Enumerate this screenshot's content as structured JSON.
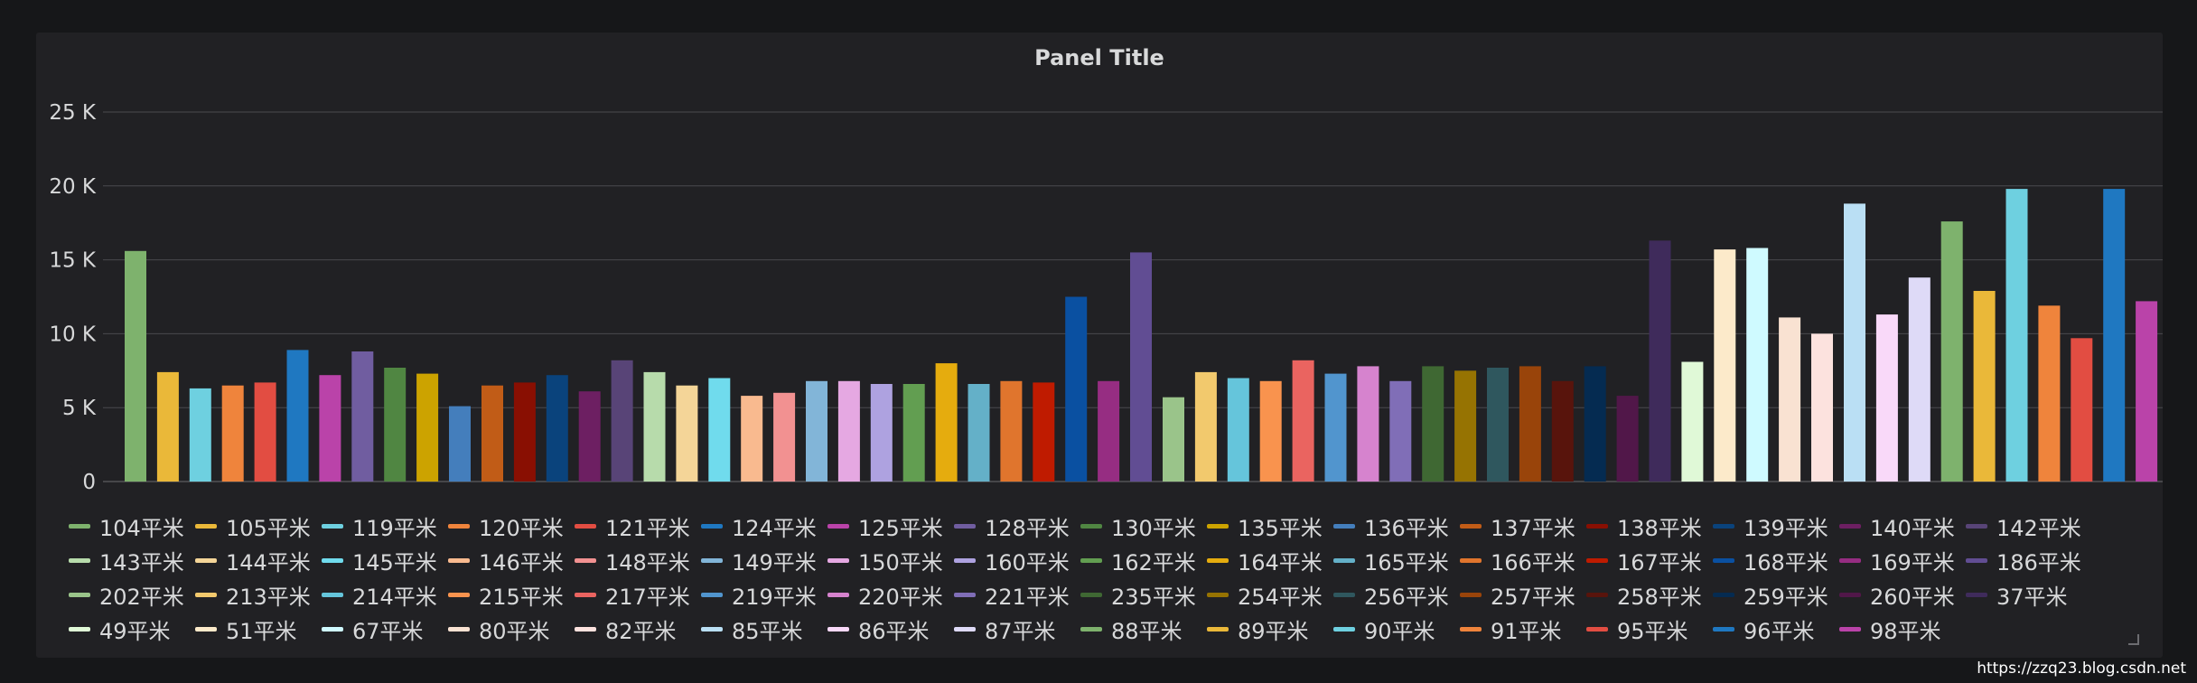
{
  "panel": {
    "title": "Panel Title"
  },
  "watermark": "https://zzq23.blog.csdn.net",
  "chart_data": {
    "type": "bar",
    "title": "Panel Title",
    "xlabel": "",
    "ylabel": "",
    "ylim": [
      0,
      25000
    ],
    "y_ticks": [
      0,
      5000,
      10000,
      15000,
      20000,
      25000
    ],
    "y_tick_labels": [
      "0",
      "5 K",
      "10 K",
      "15 K",
      "20 K",
      "25 K"
    ],
    "grid": true,
    "legend_position": "bottom",
    "series": [
      {
        "name": "104平米",
        "value": 15600,
        "color": "#7eb26d"
      },
      {
        "name": "105平米",
        "value": 7400,
        "color": "#eab839"
      },
      {
        "name": "119平米",
        "value": 6300,
        "color": "#6ed0e0"
      },
      {
        "name": "120平米",
        "value": 6500,
        "color": "#ef843c"
      },
      {
        "name": "121平米",
        "value": 6700,
        "color": "#e24d42"
      },
      {
        "name": "124平米",
        "value": 8900,
        "color": "#1f78c1"
      },
      {
        "name": "125平米",
        "value": 7200,
        "color": "#ba43a9"
      },
      {
        "name": "128平米",
        "value": 8800,
        "color": "#705da0"
      },
      {
        "name": "130平米",
        "value": 7700,
        "color": "#508642"
      },
      {
        "name": "135平米",
        "value": 7300,
        "color": "#cca300"
      },
      {
        "name": "136平米",
        "value": 5100,
        "color": "#447ebc"
      },
      {
        "name": "137平米",
        "value": 6500,
        "color": "#c15c17"
      },
      {
        "name": "138平米",
        "value": 6700,
        "color": "#890f02"
      },
      {
        "name": "139平米",
        "value": 7200,
        "color": "#0a437c"
      },
      {
        "name": "140平米",
        "value": 6100,
        "color": "#6d1f62"
      },
      {
        "name": "142平米",
        "value": 8200,
        "color": "#584477"
      },
      {
        "name": "143平米",
        "value": 7400,
        "color": "#b7dbab"
      },
      {
        "name": "144平米",
        "value": 6500,
        "color": "#f4d598"
      },
      {
        "name": "145平米",
        "value": 7000,
        "color": "#70dbed"
      },
      {
        "name": "146平米",
        "value": 5800,
        "color": "#f9ba8f"
      },
      {
        "name": "148平米",
        "value": 6000,
        "color": "#f29191"
      },
      {
        "name": "149平米",
        "value": 6800,
        "color": "#82b5d8"
      },
      {
        "name": "150平米",
        "value": 6800,
        "color": "#e5a8e2"
      },
      {
        "name": "160平米",
        "value": 6600,
        "color": "#aea2e0"
      },
      {
        "name": "162平米",
        "value": 6600,
        "color": "#629e51"
      },
      {
        "name": "164平米",
        "value": 8000,
        "color": "#e5ac0e"
      },
      {
        "name": "165平米",
        "value": 6600,
        "color": "#64b0c8"
      },
      {
        "name": "166平米",
        "value": 6800,
        "color": "#e0752d"
      },
      {
        "name": "167平米",
        "value": 6700,
        "color": "#bf1b00"
      },
      {
        "name": "168平米",
        "value": 12500,
        "color": "#0a50a1"
      },
      {
        "name": "169平米",
        "value": 6800,
        "color": "#962d82"
      },
      {
        "name": "186平米",
        "value": 15500,
        "color": "#614d93"
      },
      {
        "name": "202平米",
        "value": 5700,
        "color": "#9ac48a"
      },
      {
        "name": "213平米",
        "value": 7400,
        "color": "#f2c96d"
      },
      {
        "name": "214平米",
        "value": 7000,
        "color": "#65c5db"
      },
      {
        "name": "215平米",
        "value": 6800,
        "color": "#f9934e"
      },
      {
        "name": "217平米",
        "value": 8200,
        "color": "#ea6460"
      },
      {
        "name": "219平米",
        "value": 7300,
        "color": "#5195ce"
      },
      {
        "name": "220平米",
        "value": 7800,
        "color": "#d683ce"
      },
      {
        "name": "221平米",
        "value": 6800,
        "color": "#806eb7"
      },
      {
        "name": "235平米",
        "value": 7800,
        "color": "#3f6833"
      },
      {
        "name": "254平米",
        "value": 7500,
        "color": "#967302"
      },
      {
        "name": "256平米",
        "value": 7700,
        "color": "#2f575e"
      },
      {
        "name": "257平米",
        "value": 7800,
        "color": "#99440a"
      },
      {
        "name": "258平米",
        "value": 6800,
        "color": "#58140c"
      },
      {
        "name": "259平米",
        "value": 7800,
        "color": "#052b51"
      },
      {
        "name": "260平米",
        "value": 5800,
        "color": "#511749"
      },
      {
        "name": "37平米",
        "value": 16300,
        "color": "#3f2b5b"
      },
      {
        "name": "49平米",
        "value": 8100,
        "color": "#e0f9d7"
      },
      {
        "name": "51平米",
        "value": 15700,
        "color": "#fceaca"
      },
      {
        "name": "67平米",
        "value": 15800,
        "color": "#cffaff"
      },
      {
        "name": "80平米",
        "value": 11100,
        "color": "#f9e2d2"
      },
      {
        "name": "82平米",
        "value": 10000,
        "color": "#fce2de"
      },
      {
        "name": "85平米",
        "value": 18800,
        "color": "#badff4"
      },
      {
        "name": "86平米",
        "value": 11300,
        "color": "#f9d9f9"
      },
      {
        "name": "87平米",
        "value": 13800,
        "color": "#dedaf7"
      },
      {
        "name": "88平米",
        "value": 17600,
        "color": "#7eb26d"
      },
      {
        "name": "89平米",
        "value": 12900,
        "color": "#eab839"
      },
      {
        "name": "90平米",
        "value": 19800,
        "color": "#6ed0e0"
      },
      {
        "name": "91平米",
        "value": 11900,
        "color": "#ef843c"
      },
      {
        "name": "95平米",
        "value": 9700,
        "color": "#e24d42"
      },
      {
        "name": "96平米",
        "value": 19800,
        "color": "#1f78c1"
      },
      {
        "name": "98平米",
        "value": 12200,
        "color": "#ba43a9"
      }
    ]
  }
}
